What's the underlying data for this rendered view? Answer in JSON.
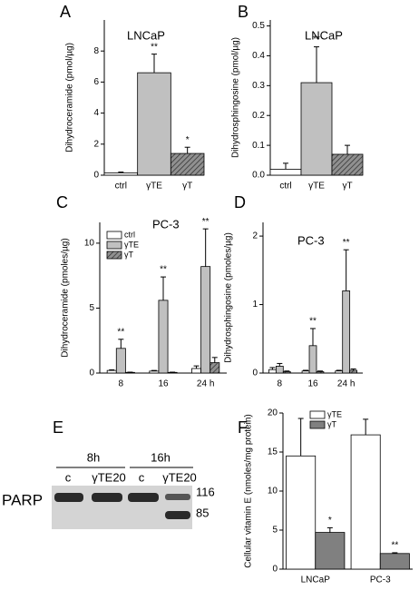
{
  "chart_data": [
    {
      "panel": "A",
      "type": "bar",
      "title": "LNCaP",
      "ylabel": "Dihydroceramide (pmol/µg)",
      "categories": [
        "ctrl",
        "γTE",
        "γT"
      ],
      "values": [
        0.15,
        6.6,
        1.4
      ],
      "errors": [
        0.05,
        1.2,
        0.4
      ],
      "colors": [
        "#ffffff",
        "#c0c0c0",
        "#808080"
      ],
      "hatch": [
        false,
        false,
        true
      ],
      "stars": [
        null,
        "**",
        "*"
      ],
      "ylim": [
        0,
        10
      ],
      "yticks": [
        0,
        2,
        4,
        6,
        8
      ]
    },
    {
      "panel": "B",
      "type": "bar",
      "title": "LNCaP",
      "ylabel": "Dihydrosphingosine (pmol/µg)",
      "categories": [
        "ctrl",
        "γTE",
        "γT"
      ],
      "values": [
        0.02,
        0.31,
        0.07
      ],
      "errors": [
        0.02,
        0.12,
        0.03
      ],
      "colors": [
        "#ffffff",
        "#c0c0c0",
        "#808080"
      ],
      "hatch": [
        false,
        false,
        true
      ],
      "stars": [
        null,
        "**",
        null
      ],
      "ylim": [
        0,
        0.52
      ],
      "yticks": [
        {
          "value": 0,
          "label": "0.0"
        },
        0.1,
        0.2,
        0.3,
        0.4,
        0.5
      ]
    },
    {
      "panel": "C",
      "type": "bar",
      "title": "PC-3",
      "ylabel": "Dihydroceramide (pmoles/µg)",
      "categories": [
        "8",
        "16",
        "24 h"
      ],
      "legend": "upper left",
      "series": [
        {
          "name": "ctrl",
          "color": "#ffffff",
          "hatch": false,
          "values": [
            0.2,
            0.15,
            0.35
          ],
          "errors": [
            0.05,
            0.05,
            0.2
          ],
          "stars": [
            null,
            null,
            null
          ]
        },
        {
          "name": "γTE",
          "color": "#c0c0c0",
          "hatch": false,
          "values": [
            1.9,
            5.6,
            8.2
          ],
          "errors": [
            0.7,
            1.8,
            2.9
          ],
          "stars": [
            "**",
            "**",
            "**"
          ]
        },
        {
          "name": "γT",
          "color": "#808080",
          "hatch": true,
          "values": [
            0.05,
            0.05,
            0.8
          ],
          "errors": [
            0.02,
            0.02,
            0.4
          ],
          "stars": [
            null,
            null,
            null
          ]
        }
      ],
      "ylim": [
        0,
        11.6
      ],
      "yticks": [
        0,
        5,
        10
      ]
    },
    {
      "panel": "D",
      "type": "bar",
      "title": "PC-3",
      "ylabel": "Dihydrosphingosine (pmoles/µg)",
      "categories": [
        "8",
        "16",
        "24 h"
      ],
      "series": [
        {
          "color": "#ffffff",
          "hatch": false,
          "values": [
            0.05,
            0.03,
            0.03
          ],
          "errors": [
            0.03,
            0.01,
            0.01
          ],
          "stars": [
            null,
            null,
            null
          ]
        },
        {
          "color": "#c0c0c0",
          "hatch": false,
          "values": [
            0.1,
            0.4,
            1.2
          ],
          "errors": [
            0.04,
            0.25,
            0.6
          ],
          "stars": [
            null,
            "**",
            "**"
          ]
        },
        {
          "color": "#808080",
          "hatch": true,
          "values": [
            0.02,
            0.02,
            0.04
          ],
          "errors": [
            0.01,
            0.01,
            0.02
          ],
          "stars": [
            null,
            null,
            null
          ]
        }
      ],
      "ylim": [
        0,
        2.2
      ],
      "yticks": [
        0,
        1,
        2
      ]
    },
    {
      "panel": "F",
      "type": "bar",
      "ylabel": "Cellular vitamin E (nmoles/mg protein)",
      "categories": [
        "LNCaP",
        "PC-3"
      ],
      "legend": "upper right",
      "series": [
        {
          "name": "γTE",
          "color": "#ffffff",
          "hatch": false,
          "values": [
            14.5,
            17.2
          ],
          "errors": [
            4.8,
            2.0
          ],
          "stars": [
            null,
            null
          ]
        },
        {
          "name": "γT",
          "color": "#808080",
          "hatch": false,
          "values": [
            4.7,
            2.0
          ],
          "errors": [
            0.6,
            0.1
          ],
          "stars": [
            "*",
            "**"
          ]
        }
      ],
      "ylim": [
        0,
        20
      ],
      "yticks": [
        0,
        5,
        10,
        15,
        20
      ]
    }
  ],
  "blot": {
    "panel": "E",
    "timepoints": [
      "8h",
      "16h"
    ],
    "lanes": [
      "c",
      "γTE20",
      "c",
      "γTE20"
    ],
    "protein": "PARP",
    "bands": [
      "116",
      "85"
    ]
  }
}
